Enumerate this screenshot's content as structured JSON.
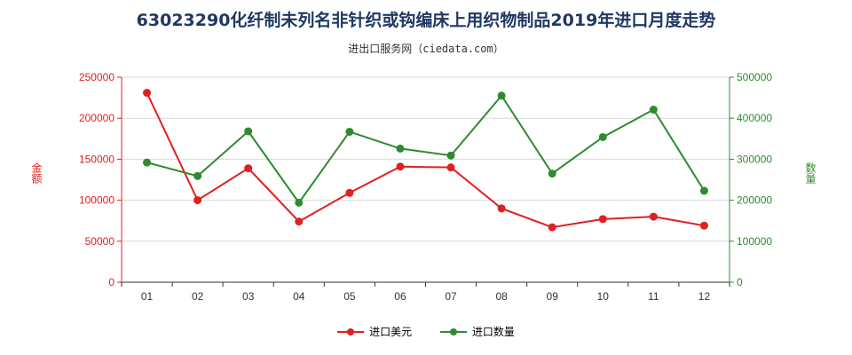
{
  "title": "63023290化纤制未列名非针织或钩编床上用织物制品2019年进口月度走势",
  "subtitle": "进出口服务网（ciedata.com）",
  "colors": {
    "amount": "#e02020",
    "quantity": "#2e8b2e",
    "axis_left": "#e02020",
    "axis_right": "#2e8b2e"
  },
  "chart_data": {
    "type": "line",
    "categories": [
      "01",
      "02",
      "03",
      "04",
      "05",
      "06",
      "07",
      "08",
      "09",
      "10",
      "11",
      "12"
    ],
    "series": [
      {
        "name": "进口美元",
        "axis": "left",
        "values": [
          231000,
          100000,
          139000,
          74000,
          109000,
          141000,
          140000,
          90000,
          67000,
          77000,
          80000,
          69000
        ]
      },
      {
        "name": "进口数量",
        "axis": "right",
        "values": [
          292000,
          259000,
          368000,
          194000,
          367000,
          326000,
          309000,
          455000,
          265000,
          354000,
          421000,
          223000
        ]
      }
    ],
    "ylabel_left": "金额",
    "ylabel_right": "数量",
    "ylim_left": [
      0,
      250000
    ],
    "ylim_right": [
      0,
      500000
    ],
    "yticks_left": [
      "0",
      "50000",
      "100000",
      "150000",
      "200000",
      "250000"
    ],
    "yticks_right": [
      "0",
      "100000",
      "200000",
      "300000",
      "400000",
      "500000"
    ],
    "legend_position": "bottom"
  },
  "legend": {
    "amount_label": "进口美元",
    "quantity_label": "进口数量"
  }
}
